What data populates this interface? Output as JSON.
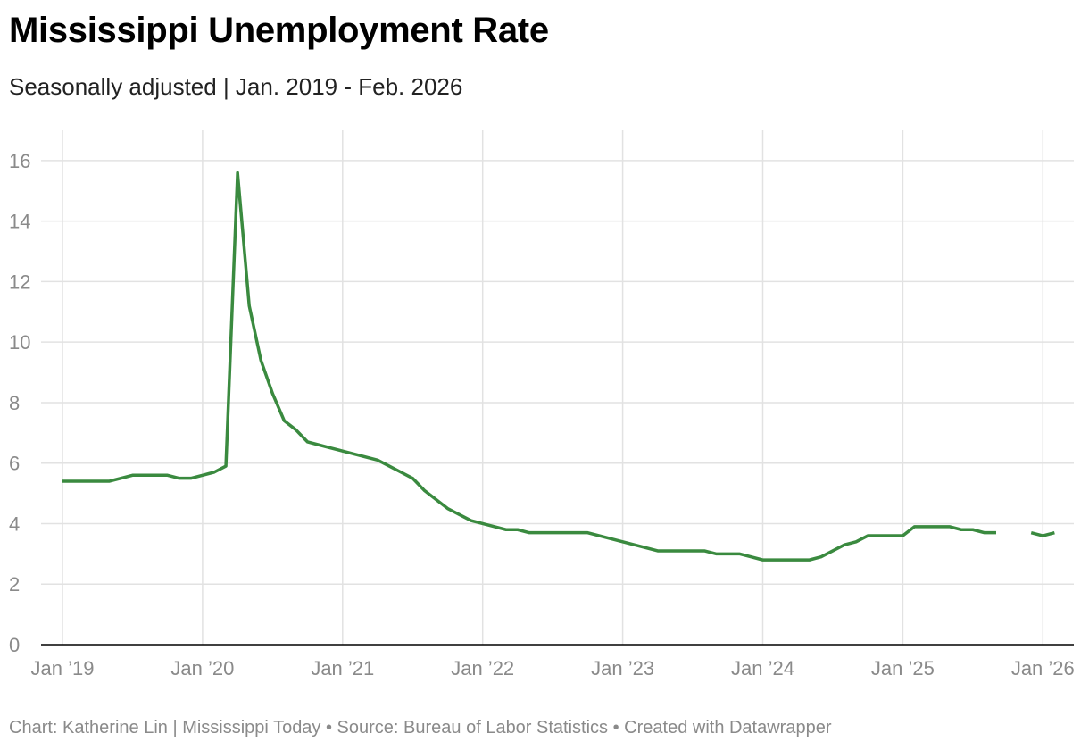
{
  "header": {
    "title": "Mississippi Unemployment Rate",
    "subtitle": "Seasonally adjusted | Jan. 2019 - Feb. 2026"
  },
  "footer": {
    "credit": "Chart: Katherine Lin | Mississippi Today • Source: Bureau of Labor Statistics • Created with Datawrapper"
  },
  "colors": {
    "line": "#3a8a3f",
    "grid": "#e2e2e2",
    "axis": "#000000",
    "tick_text": "#8a8a8a"
  },
  "chart_data": {
    "type": "line",
    "title": "Mississippi Unemployment Rate",
    "subtitle": "Seasonally adjusted | Jan. 2019 - Feb. 2026",
    "ylim": [
      0,
      17
    ],
    "y_ticks": [
      0,
      2,
      4,
      6,
      8,
      10,
      12,
      14,
      16
    ],
    "x_ticks": [
      {
        "date": "2019-01",
        "label": "Jan ’19"
      },
      {
        "date": "2020-01",
        "label": "Jan ’20"
      },
      {
        "date": "2021-01",
        "label": "Jan ’21"
      },
      {
        "date": "2022-01",
        "label": "Jan ’22"
      },
      {
        "date": "2023-01",
        "label": "Jan ’23"
      },
      {
        "date": "2024-01",
        "label": "Jan ’24"
      },
      {
        "date": "2025-01",
        "label": "Jan ’25"
      },
      {
        "date": "2026-01",
        "label": "Jan ’26"
      }
    ],
    "grid": true,
    "series": [
      {
        "color": "#3a8a3f",
        "points": [
          [
            "2019-01",
            5.4
          ],
          [
            "2019-02",
            5.4
          ],
          [
            "2019-03",
            5.4
          ],
          [
            "2019-04",
            5.4
          ],
          [
            "2019-05",
            5.4
          ],
          [
            "2019-06",
            5.5
          ],
          [
            "2019-07",
            5.6
          ],
          [
            "2019-08",
            5.6
          ],
          [
            "2019-09",
            5.6
          ],
          [
            "2019-10",
            5.6
          ],
          [
            "2019-11",
            5.5
          ],
          [
            "2019-12",
            5.5
          ],
          [
            "2020-01",
            5.6
          ],
          [
            "2020-02",
            5.7
          ],
          [
            "2020-03",
            5.9
          ],
          [
            "2020-04",
            15.6
          ],
          [
            "2020-05",
            11.2
          ],
          [
            "2020-06",
            9.4
          ],
          [
            "2020-07",
            8.3
          ],
          [
            "2020-08",
            7.4
          ],
          [
            "2020-09",
            7.1
          ],
          [
            "2020-10",
            6.7
          ],
          [
            "2020-11",
            6.6
          ],
          [
            "2020-12",
            6.5
          ],
          [
            "2021-01",
            6.4
          ],
          [
            "2021-02",
            6.3
          ],
          [
            "2021-03",
            6.2
          ],
          [
            "2021-04",
            6.1
          ],
          [
            "2021-05",
            5.9
          ],
          [
            "2021-06",
            5.7
          ],
          [
            "2021-07",
            5.5
          ],
          [
            "2021-08",
            5.1
          ],
          [
            "2021-09",
            4.8
          ],
          [
            "2021-10",
            4.5
          ],
          [
            "2021-11",
            4.3
          ],
          [
            "2021-12",
            4.1
          ],
          [
            "2022-01",
            4.0
          ],
          [
            "2022-02",
            3.9
          ],
          [
            "2022-03",
            3.8
          ],
          [
            "2022-04",
            3.8
          ],
          [
            "2022-05",
            3.7
          ],
          [
            "2022-06",
            3.7
          ],
          [
            "2022-07",
            3.7
          ],
          [
            "2022-08",
            3.7
          ],
          [
            "2022-09",
            3.7
          ],
          [
            "2022-10",
            3.7
          ],
          [
            "2022-11",
            3.6
          ],
          [
            "2022-12",
            3.5
          ],
          [
            "2023-01",
            3.4
          ],
          [
            "2023-02",
            3.3
          ],
          [
            "2023-03",
            3.2
          ],
          [
            "2023-04",
            3.1
          ],
          [
            "2023-05",
            3.1
          ],
          [
            "2023-06",
            3.1
          ],
          [
            "2023-07",
            3.1
          ],
          [
            "2023-08",
            3.1
          ],
          [
            "2023-09",
            3.0
          ],
          [
            "2023-10",
            3.0
          ],
          [
            "2023-11",
            3.0
          ],
          [
            "2023-12",
            2.9
          ],
          [
            "2024-01",
            2.8
          ],
          [
            "2024-02",
            2.8
          ],
          [
            "2024-03",
            2.8
          ],
          [
            "2024-04",
            2.8
          ],
          [
            "2024-05",
            2.8
          ],
          [
            "2024-06",
            2.9
          ],
          [
            "2024-07",
            3.1
          ],
          [
            "2024-08",
            3.3
          ],
          [
            "2024-09",
            3.4
          ],
          [
            "2024-10",
            3.6
          ],
          [
            "2024-11",
            3.6
          ],
          [
            "2024-12",
            3.6
          ],
          [
            "2025-01",
            3.6
          ],
          [
            "2025-02",
            3.9
          ],
          [
            "2025-03",
            3.9
          ],
          [
            "2025-04",
            3.9
          ],
          [
            "2025-05",
            3.9
          ],
          [
            "2025-06",
            3.8
          ],
          [
            "2025-07",
            3.8
          ],
          [
            "2025-08",
            3.7
          ],
          [
            "2025-09",
            3.7
          ],
          [
            "2025-10",
            null
          ],
          [
            "2025-11",
            null
          ],
          [
            "2025-12",
            3.7
          ],
          [
            "2026-01",
            3.6
          ],
          [
            "2026-02",
            3.7
          ]
        ]
      }
    ]
  }
}
